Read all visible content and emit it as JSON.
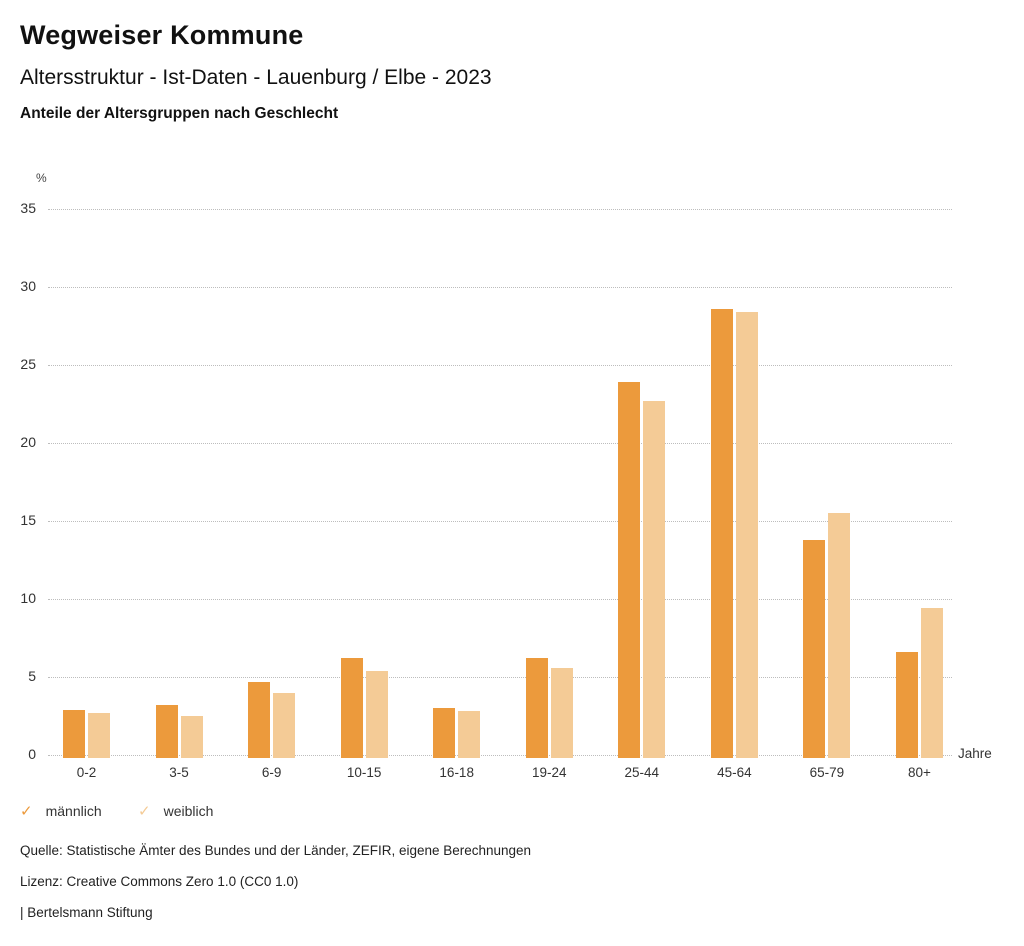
{
  "header": {
    "title": "Wegweiser Kommune",
    "subtitle": "Altersstruktur - Ist-Daten - Lauenburg / Elbe - 2023",
    "caption": "Anteile der Altersgruppen nach Geschlecht"
  },
  "chart_data": {
    "type": "bar",
    "title": "Anteile der Altersgruppen nach Geschlecht",
    "unit_label": "%",
    "xlabel": "Jahre",
    "categories": [
      "0-2",
      "3-5",
      "6-9",
      "10-15",
      "16-18",
      "19-24",
      "25-44",
      "45-64",
      "65-79",
      "80+"
    ],
    "series": [
      {
        "name": "männlich",
        "color": "#EC9A3C",
        "values": [
          2.9,
          3.2,
          4.7,
          6.2,
          3.0,
          6.2,
          23.9,
          28.6,
          13.8,
          6.6
        ]
      },
      {
        "name": "weiblich",
        "color": "#F4CB96",
        "values": [
          2.7,
          2.5,
          4.0,
          5.4,
          2.8,
          5.6,
          22.7,
          28.4,
          15.5,
          9.4
        ]
      }
    ],
    "ylim": [
      0,
      35
    ],
    "ytick_step": 5,
    "yticks": [
      0,
      5,
      10,
      15,
      20,
      25,
      30,
      35
    ],
    "grid": "horizontal-dotted",
    "legend_position": "bottom-left",
    "gridline_color": "#bdbdbd"
  },
  "legend": {
    "check_icon": "✓",
    "items": [
      {
        "label": "männlich",
        "check_color": "#EC9A3C"
      },
      {
        "label": "weiblich",
        "check_color": "#F4CB96"
      }
    ]
  },
  "footer": {
    "source": "Quelle: Statistische Ämter des Bundes und der Länder, ZEFIR, eigene Berechnungen",
    "license": "Lizenz: Creative Commons Zero 1.0 (CC0 1.0)",
    "brand": "| Bertelsmann Stiftung"
  }
}
